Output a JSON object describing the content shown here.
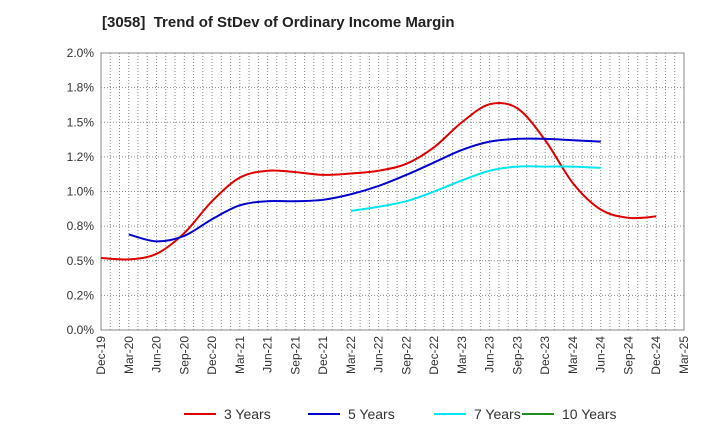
{
  "chart_data": {
    "type": "line",
    "title": "[3058]  Trend of StDev of Ordinary Income Margin",
    "xlabel": "",
    "ylabel": "",
    "x_tick_labels": [
      "Dec-19",
      "Mar-20",
      "Jun-20",
      "Sep-20",
      "Dec-20",
      "Mar-21",
      "Jun-21",
      "Sep-21",
      "Dec-21",
      "Mar-22",
      "Jun-22",
      "Sep-22",
      "Dec-22",
      "Mar-23",
      "Jun-23",
      "Sep-23",
      "Dec-23",
      "Mar-24",
      "Jun-24",
      "Sep-24",
      "Dec-24",
      "Mar-25"
    ],
    "y_tick_labels": [
      "0.0%",
      "0.2%",
      "0.5%",
      "0.8%",
      "1.0%",
      "1.2%",
      "1.5%",
      "1.8%",
      "2.0%"
    ],
    "ylim": [
      0,
      2.0
    ],
    "grid": true,
    "legend_position": "bottom",
    "series": [
      {
        "name": "3 Years",
        "color": "#dd0000",
        "start_index": 0,
        "values": [
          0.52,
          0.51,
          0.55,
          0.7,
          0.93,
          1.1,
          1.15,
          1.14,
          1.12,
          1.13,
          1.15,
          1.2,
          1.32,
          1.5,
          1.63,
          1.6,
          1.37,
          1.06,
          0.87,
          0.81,
          0.82
        ]
      },
      {
        "name": "5 Years",
        "color": "#0000cc",
        "start_index": 1,
        "values": [
          0.69,
          0.64,
          0.68,
          0.8,
          0.9,
          0.93,
          0.93,
          0.94,
          0.98,
          1.04,
          1.12,
          1.21,
          1.3,
          1.36,
          1.38,
          1.38,
          1.37,
          1.36
        ]
      },
      {
        "name": "7 Years",
        "color": "#00e5ee",
        "start_index": 9,
        "values": [
          0.86,
          0.89,
          0.93,
          1.0,
          1.08,
          1.15,
          1.18,
          1.18,
          1.18,
          1.17
        ]
      },
      {
        "name": "10 Years",
        "color": "#228b22",
        "start_index": 0,
        "values": []
      }
    ]
  }
}
